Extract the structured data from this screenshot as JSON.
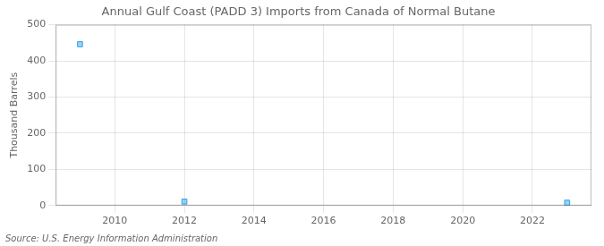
{
  "chart_data": {
    "type": "scatter",
    "title": "Annual Gulf Coast (PADD 3) Imports from Canada of Normal Butane",
    "y_label": "Thousand Barrels",
    "annotations": [
      "Source: U.S. Energy Information Administration"
    ],
    "x": [
      2009,
      2012,
      2023
    ],
    "values": [
      446,
      11,
      8
    ],
    "marker": "square",
    "xlim": [
      2008.3,
      2023.7
    ],
    "xticks": [
      2010,
      2012,
      2014,
      2016,
      2018,
      2020,
      2022
    ],
    "ylim": [
      0,
      500
    ],
    "yticks": [
      0,
      100,
      200,
      300,
      400,
      500
    ],
    "grid": true
  }
}
